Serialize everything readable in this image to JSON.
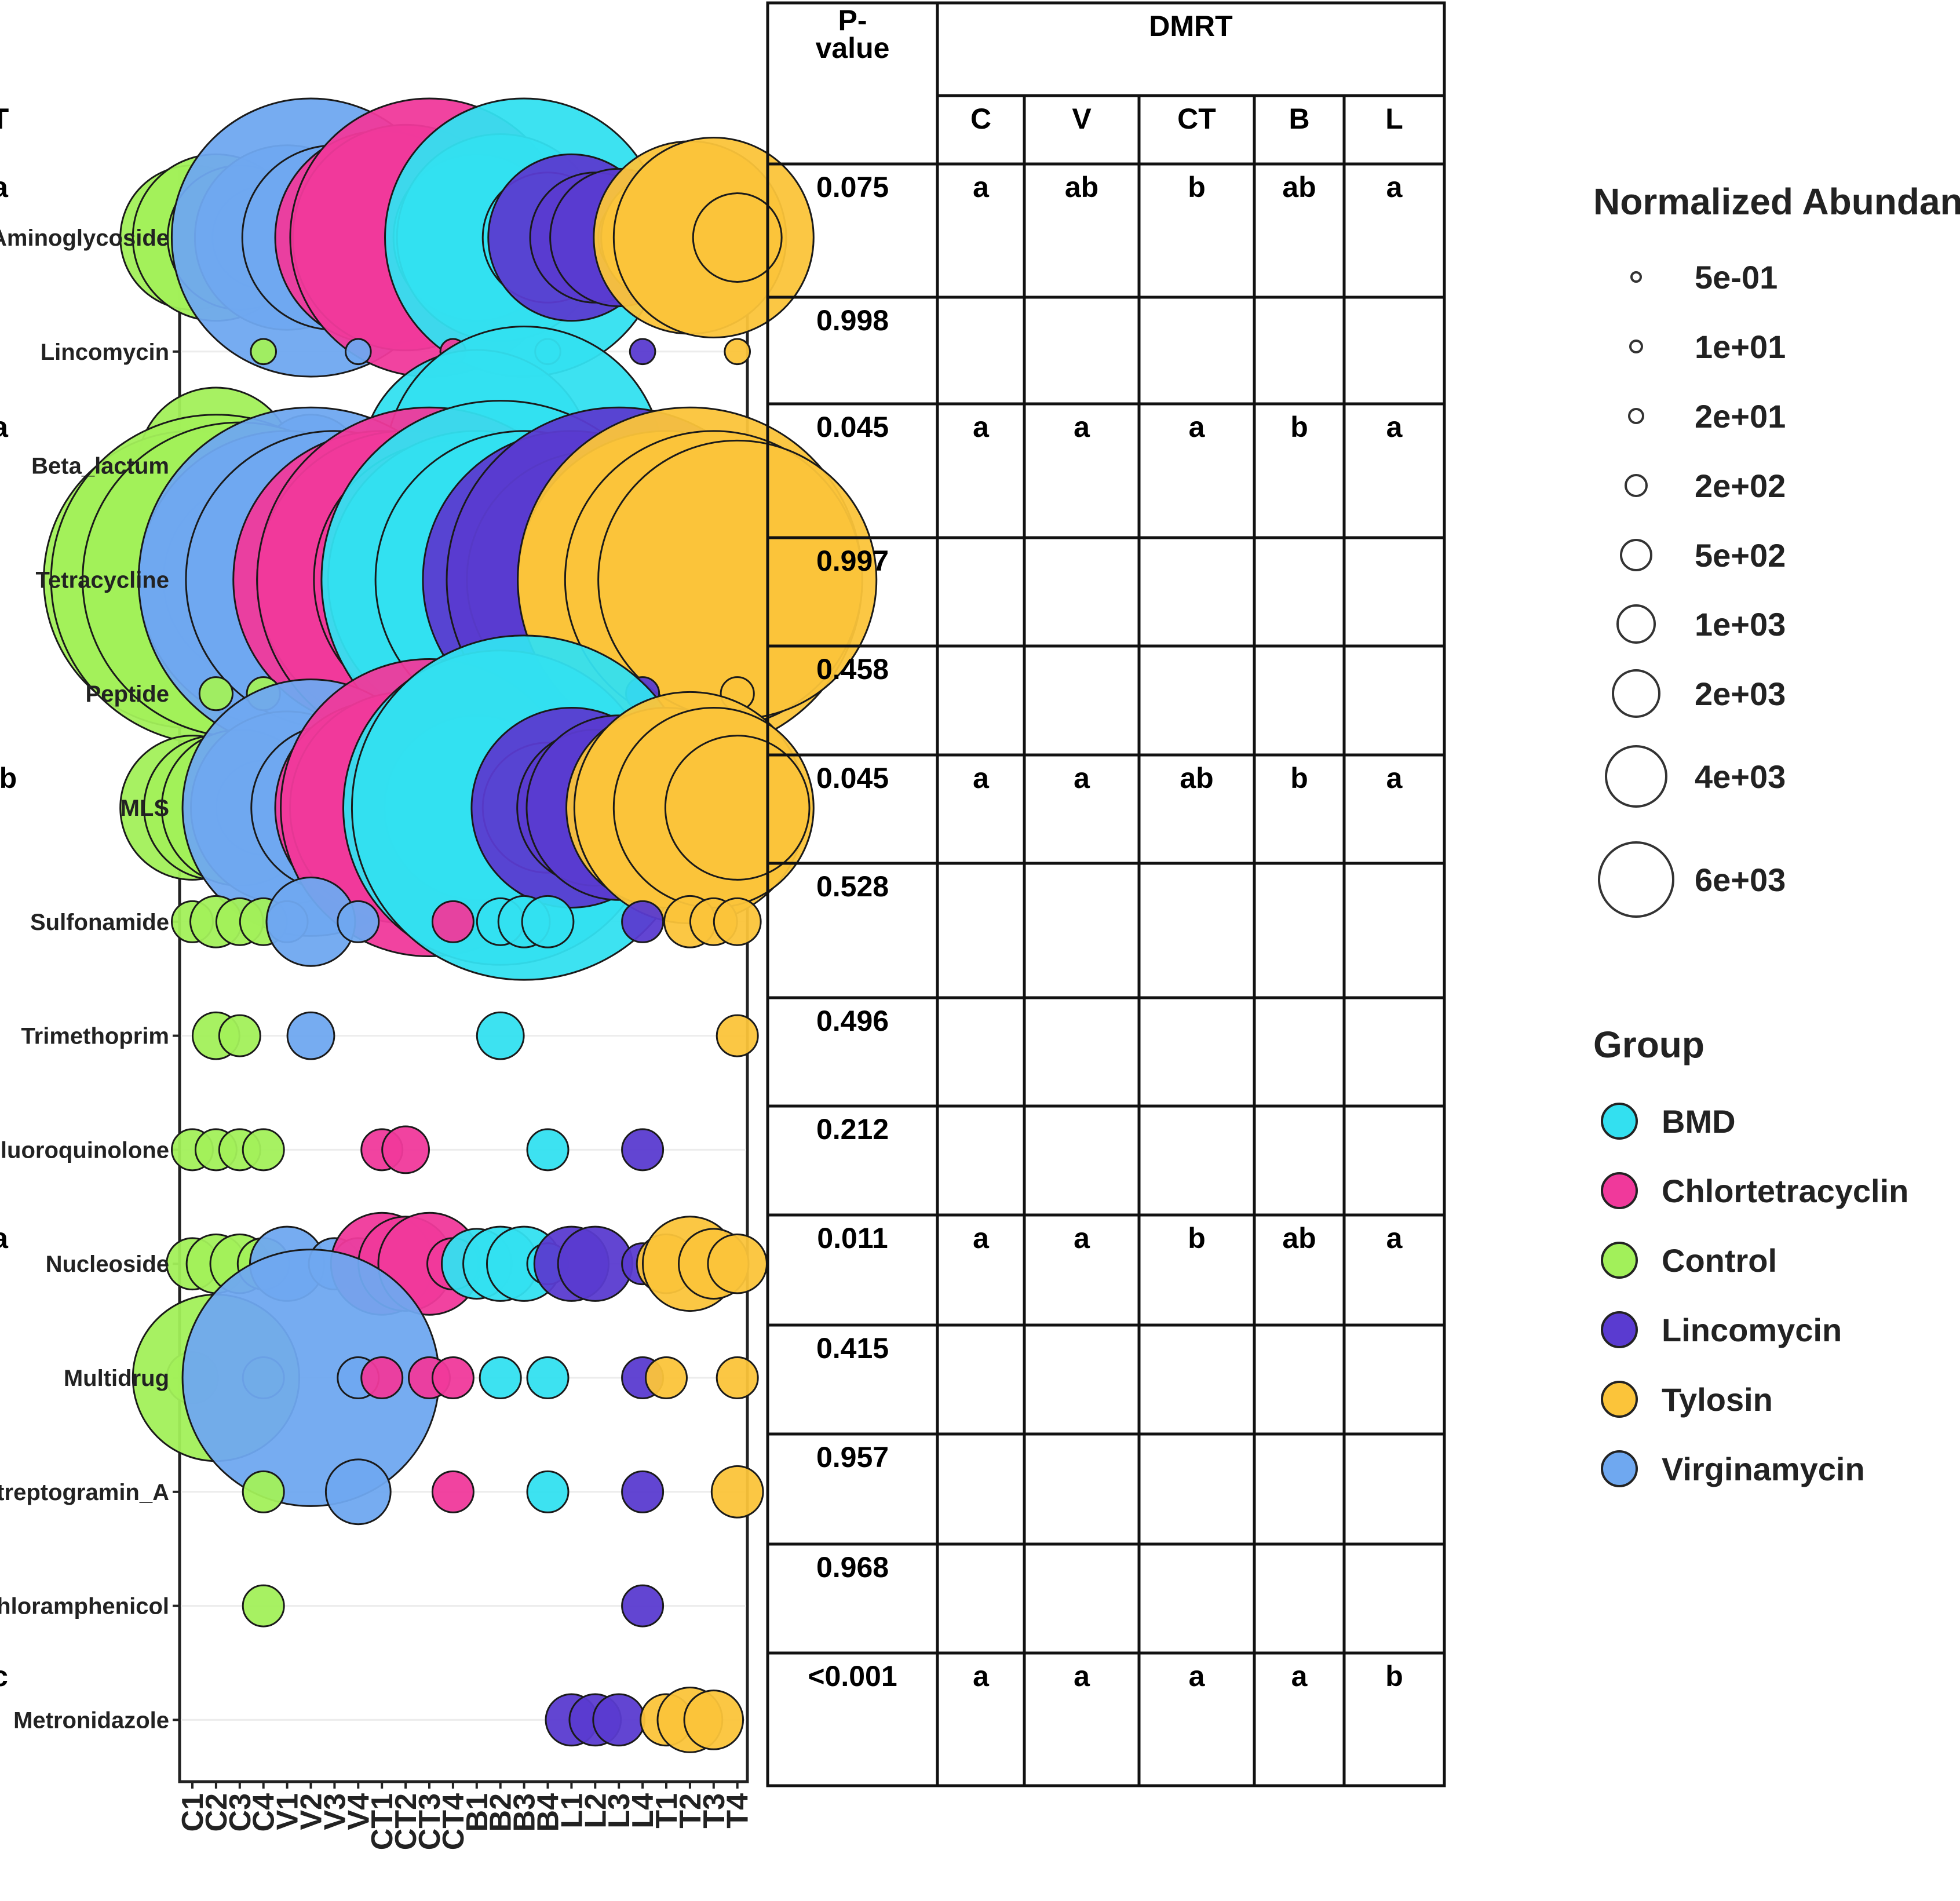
{
  "chart_data": {
    "type": "bubble",
    "categories_y": [
      "Aminoglycoside",
      "Lincomycin",
      "Beta_lactum",
      "Tetracycline",
      "Peptide",
      "MLS",
      "Sulfonamide",
      "Trimethoprim",
      "Fluoroquinolone",
      "Nucleoside",
      "Multidrug",
      "Streptogramin_A",
      "Chloramphenicol",
      "Metronidazole"
    ],
    "samples": [
      "C1",
      "C2",
      "C3",
      "C4",
      "V1",
      "V2",
      "V3",
      "V4",
      "CT1",
      "CT2",
      "CT3",
      "CT4",
      "B1",
      "B2",
      "B3",
      "B4",
      "L1",
      "L2",
      "L3",
      "L4",
      "T1",
      "T2",
      "T3",
      "T4"
    ],
    "sample_groups": [
      "Control",
      "Control",
      "Control",
      "Control",
      "Virginamycin",
      "Virginamycin",
      "Virginamycin",
      "Virginamycin",
      "Chlortetracyclin",
      "Chlortetracyclin",
      "Chlortetracyclin",
      "Chlortetracyclin",
      "BMD",
      "BMD",
      "BMD",
      "BMD",
      "Lincomycin",
      "Lincomycin",
      "Lincomycin",
      "Lincomycin",
      "Tylosin",
      "Tylosin",
      "Tylosin",
      "Tylosin"
    ],
    "values": [
      [
        400,
        600,
        400,
        150,
        800,
        2500,
        800,
        100,
        1200,
        1400,
        2500,
        200,
        600,
        1100,
        2500,
        300,
        600,
        300,
        350,
        100,
        300,
        900,
        1000,
        100
      ],
      [
        0,
        0,
        0,
        2,
        0,
        0,
        0,
        2,
        0,
        0,
        0,
        2,
        0,
        0,
        0,
        2,
        0,
        0,
        0,
        2,
        0,
        0,
        0,
        2
      ],
      [
        30,
        500,
        0,
        5,
        50,
        150,
        0,
        5,
        0,
        0,
        0,
        5,
        1500,
        80,
        2500,
        5,
        0,
        0,
        0,
        5,
        0,
        0,
        10,
        5
      ],
      [
        3000,
        4000,
        3500,
        1000,
        3000,
        4500,
        3000,
        800,
        3000,
        3000,
        4500,
        2500,
        3000,
        5000,
        3000,
        600,
        3000,
        2000,
        4500,
        800,
        3000,
        4500,
        3000,
        2500
      ],
      [
        0,
        5,
        0,
        5,
        0,
        0,
        0,
        0,
        0,
        0,
        0,
        5,
        0,
        0,
        0,
        0,
        0,
        0,
        0,
        5,
        0,
        0,
        0,
        5
      ],
      [
        400,
        400,
        500,
        120,
        900,
        2000,
        600,
        150,
        1200,
        1500,
        3000,
        300,
        800,
        3500,
        4500,
        300,
        1000,
        500,
        800,
        150,
        1000,
        1500,
        1000,
        400
      ],
      [
        10,
        20,
        15,
        15,
        10,
        100,
        0,
        10,
        0,
        0,
        0,
        10,
        0,
        15,
        20,
        20,
        0,
        0,
        0,
        10,
        0,
        20,
        15,
        15
      ],
      [
        0,
        15,
        10,
        0,
        0,
        15,
        0,
        0,
        0,
        0,
        0,
        0,
        0,
        15,
        0,
        0,
        0,
        0,
        0,
        0,
        0,
        0,
        0,
        10
      ],
      [
        10,
        10,
        10,
        10,
        0,
        0,
        0,
        0,
        10,
        15,
        0,
        0,
        0,
        0,
        0,
        10,
        0,
        0,
        0,
        10,
        0,
        0,
        0,
        0
      ],
      [
        20,
        30,
        30,
        20,
        60,
        0,
        20,
        20,
        150,
        120,
        150,
        20,
        50,
        60,
        60,
        10,
        60,
        60,
        0,
        10,
        30,
        120,
        50,
        30
      ],
      [
        20,
        600,
        0,
        10,
        0,
        2000,
        0,
        10,
        10,
        0,
        10,
        10,
        0,
        10,
        0,
        10,
        0,
        0,
        0,
        10,
        10,
        0,
        0,
        10
      ],
      [
        0,
        0,
        0,
        10,
        0,
        0,
        0,
        40,
        0,
        0,
        0,
        10,
        0,
        0,
        0,
        10,
        0,
        0,
        0,
        10,
        0,
        0,
        0,
        20
      ],
      [
        0,
        0,
        0,
        10,
        0,
        0,
        0,
        0,
        0,
        0,
        0,
        0,
        0,
        0,
        0,
        0,
        0,
        0,
        0,
        10,
        0,
        0,
        0,
        0
      ],
      [
        0,
        0,
        0,
        0,
        0,
        0,
        0,
        0,
        0,
        0,
        0,
        0,
        0,
        0,
        0,
        0,
        20,
        20,
        20,
        0,
        20,
        40,
        30,
        0
      ]
    ],
    "size_legend": {
      "title": "Normalized Abundance",
      "entries": [
        {
          "label": "5e-01",
          "value": 0.5
        },
        {
          "label": "1e+01",
          "value": 10
        },
        {
          "label": "2e+01",
          "value": 20
        },
        {
          "label": "2e+02",
          "value": 200
        },
        {
          "label": "5e+02",
          "value": 500
        },
        {
          "label": "1e+03",
          "value": 1000
        },
        {
          "label": "2e+03",
          "value": 2000
        },
        {
          "label": "4e+03",
          "value": 4000
        },
        {
          "label": "6e+03",
          "value": 6000
        }
      ]
    },
    "group_legend": {
      "title": "Group",
      "entries": [
        {
          "name": "BMD",
          "color": "#33e0f0"
        },
        {
          "name": "Chlortetracyclin",
          "color": "#f0399b"
        },
        {
          "name": "Control",
          "color": "#a2f05a"
        },
        {
          "name": "Lincomycin",
          "color": "#5a3bd0"
        },
        {
          "name": "Tylosin",
          "color": "#fbc43a"
        },
        {
          "name": "Virginamycin",
          "color": "#6fa8f0"
        }
      ]
    }
  },
  "table": {
    "pvalue_header": "P-\nvalue",
    "pvalue_header_lines": [
      "P-",
      "value"
    ],
    "dmrt_header": "DMRT",
    "columns": [
      "C",
      "V",
      "CT",
      "B",
      "L",
      "T"
    ],
    "rows": [
      {
        "p": "0.075",
        "dmrt": [
          "a",
          "ab",
          "b",
          "ab",
          "a",
          "a"
        ]
      },
      {
        "p": "0.998",
        "dmrt": [
          "",
          "",
          "",
          "",
          "",
          ""
        ]
      },
      {
        "p": "0.045",
        "dmrt": [
          "a",
          "a",
          "a",
          "b",
          "a",
          "a"
        ]
      },
      {
        "p": "0.997",
        "dmrt": [
          "",
          "",
          "",
          "",
          "",
          ""
        ]
      },
      {
        "p": "0.458",
        "dmrt": [
          "",
          "",
          "",
          "",
          "",
          ""
        ]
      },
      {
        "p": "0.045",
        "dmrt": [
          "a",
          "a",
          "ab",
          "b",
          "a",
          "ab"
        ]
      },
      {
        "p": "0.528",
        "dmrt": [
          "",
          "",
          "",
          "",
          "",
          ""
        ]
      },
      {
        "p": "0.496",
        "dmrt": [
          "",
          "",
          "",
          "",
          "",
          ""
        ]
      },
      {
        "p": "0.212",
        "dmrt": [
          "",
          "",
          "",
          "",
          "",
          ""
        ]
      },
      {
        "p": "0.011",
        "dmrt": [
          "a",
          "a",
          "b",
          "ab",
          "a",
          "a"
        ]
      },
      {
        "p": "0.415",
        "dmrt": [
          "",
          "",
          "",
          "",
          "",
          ""
        ]
      },
      {
        "p": "0.957",
        "dmrt": [
          "",
          "",
          "",
          "",
          "",
          ""
        ]
      },
      {
        "p": "0.968",
        "dmrt": [
          "",
          "",
          "",
          "",
          "",
          ""
        ]
      },
      {
        "p": "<0.001",
        "dmrt": [
          "a",
          "a",
          "a",
          "a",
          "b",
          "c"
        ]
      }
    ]
  }
}
